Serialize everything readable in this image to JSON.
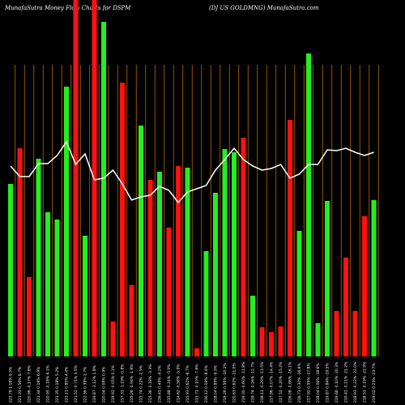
{
  "chart_data": {
    "type": "bar",
    "title": "MunafaSutra  Money Flow  Charts for DSPM",
    "subtitle": "(DJ US GOLDMNG) MunafaSutra.com",
    "ylim": [
      0,
      440
    ],
    "categories": [
      "222.78 1.16% 9.5%",
      "221.33 0.56% 8.7%",
      "220.96 -0.17% 7.8%",
      "221.34 0.18% 6.9%",
      "220.95 -0.18% 6.1%",
      "221.35 0.18% 5.2%",
      "223.11 0.80% 4.4%",
      "221.52 -0.71% 3.5%",
      "222.36 0.38% 2.7%",
      "219.87 -1.12% 1.8%",
      "220.04 0.08% 0.9%",
      "219.92 -0.05% 0.1%",
      "217.31 -1.19% -0.8%",
      "215.26 -0.94% -1.6%",
      "215.74 0.22% -2.5%",
      "215.36 -0.18% -3.3%",
      "216.41 0.49% -4.2%",
      "215.88 -0.24% -5.0%",
      "214.62 -0.58% -5.9%",
      "215.93 0.61% -6.7%",
      "215.71 -0.10% -7.6%",
      "216.12 0.19% -8.4%",
      "218.04 0.89% -9.3%",
      "219.26 0.56% -10.1%",
      "220.63 0.62% -11.0%",
      "219.30 -0.60% -11.8%",
      "218.74 -0.26% -12.7%",
      "218.11 -0.29% -13.5%",
      "217.96 -0.07% -14.4%",
      "217.52 -0.20% -15.2%",
      "216.08 -0.66% -16.1%",
      "216.73 0.30% -16.9%",
      "217.92 0.55% -17.8%",
      "218.04 0.06% -18.6%",
      "219.87 0.84% -19.5%",
      "219.66 -0.10% -20.3%",
      "219.41 -0.11% -21.2%",
      "218.93 -0.22% -22.0%",
      "218.51 -0.19% -22.9%",
      "219.02 0.23% -23.7%"
    ],
    "values": [
      213,
      257,
      98,
      244,
      178,
      169,
      333,
      440,
      149,
      440,
      413,
      43,
      338,
      88,
      285,
      218,
      228,
      159,
      235,
      233,
      10,
      130,
      202,
      256,
      252,
      270,
      75,
      36,
      30,
      37,
      292,
      155,
      374,
      41,
      192,
      56,
      122,
      56,
      173,
      193
    ],
    "colors": [
      "#22ee22",
      "#ff1111",
      "#ff1111",
      "#22ee22",
      "#22ee22",
      "#22ee22",
      "#22ee22",
      "#ff1111",
      "#22ee22",
      "#ff1111",
      "#22ee22",
      "#ff1111",
      "#ff1111",
      "#ff1111",
      "#22ee22",
      "#ff1111",
      "#22ee22",
      "#ff1111",
      "#ff1111",
      "#22ee22",
      "#ff1111",
      "#22ee22",
      "#22ee22",
      "#22ee22",
      "#22ee22",
      "#ff1111",
      "#22ee22",
      "#ff1111",
      "#ff1111",
      "#ff1111",
      "#ff1111",
      "#22ee22",
      "#22ee22",
      "#22ee22",
      "#22ee22",
      "#ff1111",
      "#ff1111",
      "#ff1111",
      "#ff1111",
      "#22ee22"
    ],
    "line_values": [
      235,
      222,
      222,
      238,
      238,
      248,
      265,
      237,
      250,
      218,
      220,
      230,
      213,
      193,
      197,
      199,
      210,
      205,
      190,
      203,
      207,
      211,
      230,
      243,
      257,
      243,
      235,
      230,
      232,
      237,
      220,
      225,
      237,
      237,
      255,
      254,
      257,
      252,
      248,
      252
    ],
    "line_color": "#ffffff"
  }
}
